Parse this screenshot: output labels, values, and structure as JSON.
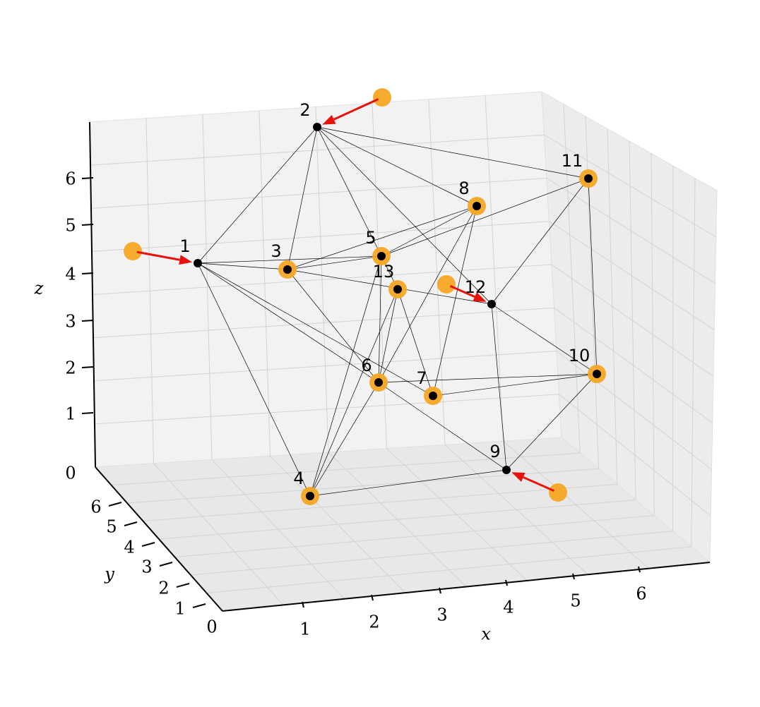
{
  "axes": {
    "x_label": "x",
    "y_label": "y",
    "z_label": "z",
    "xticks": [
      1,
      2,
      3,
      4,
      5,
      6
    ],
    "yticks": [
      0,
      1,
      2,
      3,
      4,
      5,
      6
    ],
    "zticks": [
      0,
      1,
      2,
      3,
      4,
      5,
      6
    ]
  },
  "nodes": [
    {
      "label": "1"
    },
    {
      "label": "2"
    },
    {
      "label": "3"
    },
    {
      "label": "4"
    },
    {
      "label": "5"
    },
    {
      "label": "6"
    },
    {
      "label": "7"
    },
    {
      "label": "8"
    },
    {
      "label": "9"
    },
    {
      "label": "10"
    },
    {
      "label": "11"
    },
    {
      "label": "12"
    },
    {
      "label": "13"
    }
  ]
}
